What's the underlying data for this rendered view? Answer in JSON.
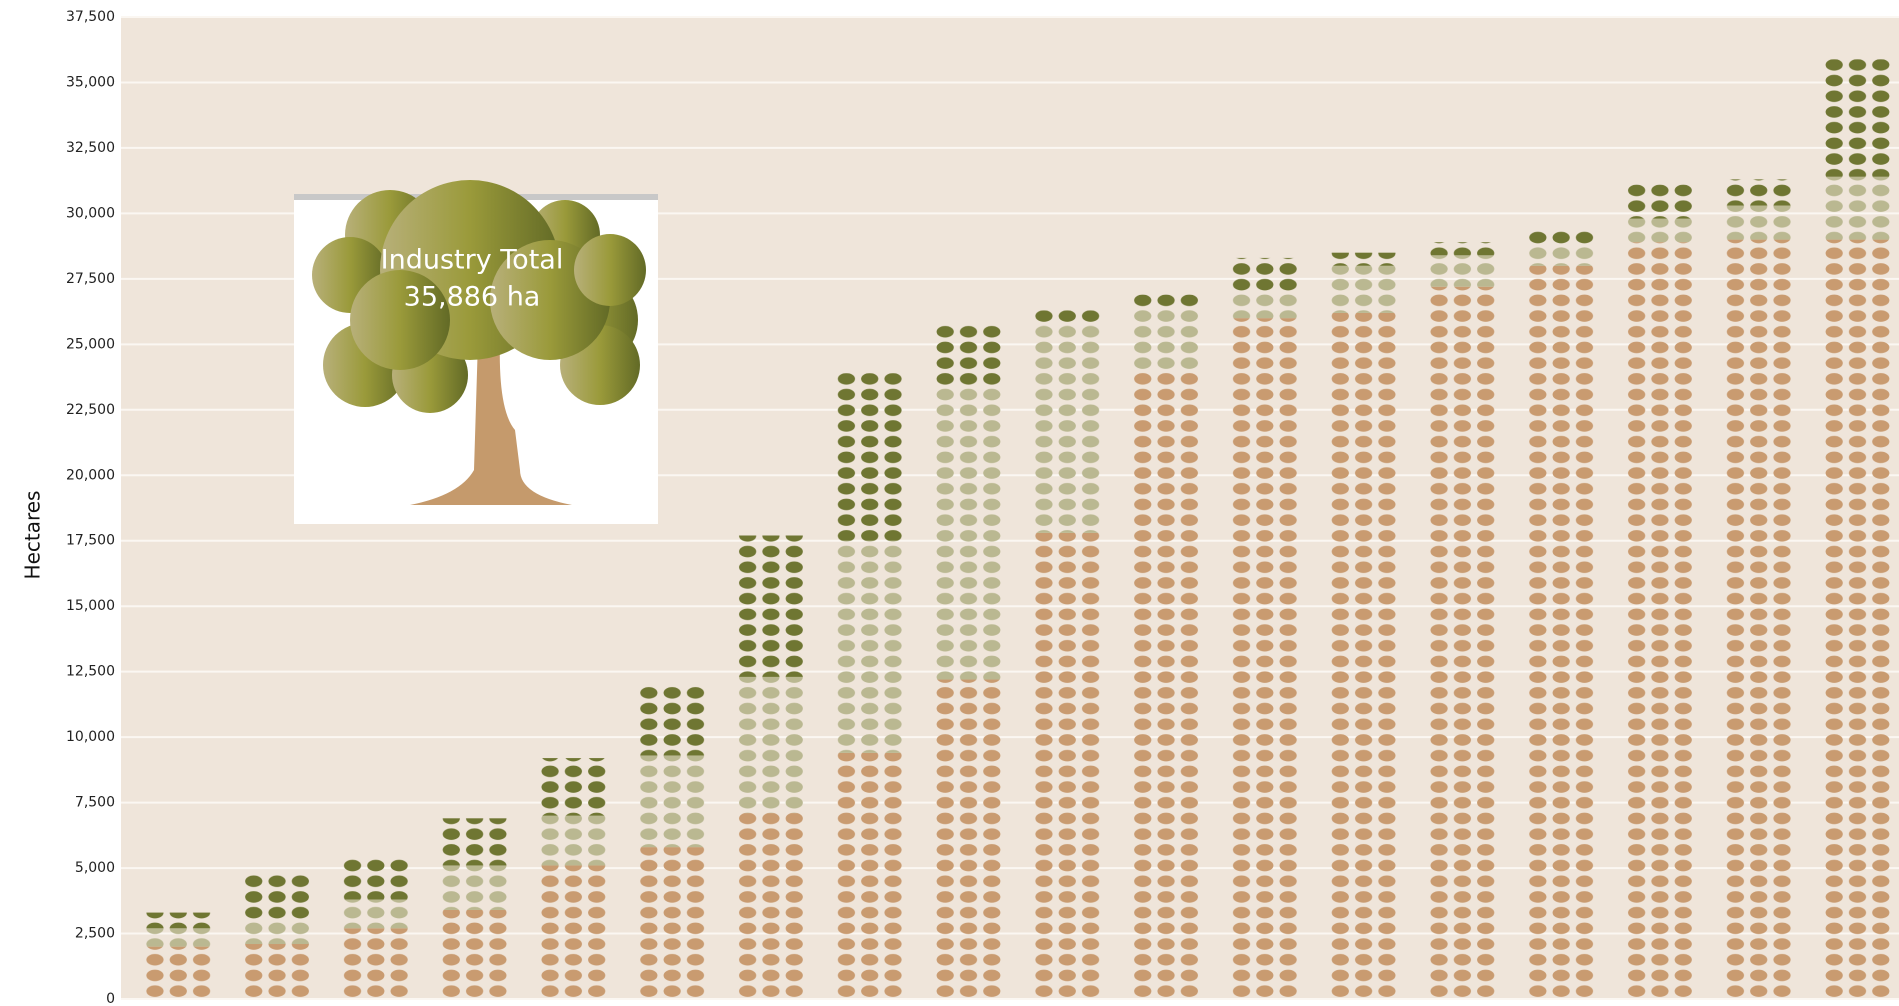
{
  "chart_data": {
    "type": "stacked-pictograph",
    "y_label": "Hectares",
    "annotations": [
      "Industry Total",
      "35,886 ha"
    ],
    "categories": [
      null,
      null,
      null,
      null,
      null,
      null,
      null,
      null,
      null,
      null,
      null,
      null,
      null,
      null,
      null,
      null,
      null,
      null
    ],
    "series": [
      {
        "color": "#c99b70",
        "values": [
          2000,
          2100,
          2700,
          3400,
          5100,
          5800,
          7100,
          9400,
          12200,
          17800,
          24000,
          26000,
          26200,
          27200,
          28000,
          28900,
          29000,
          29000
        ]
      },
      {
        "color": "#bab891",
        "values": [
          700,
          900,
          1100,
          1700,
          1900,
          3500,
          5200,
          8100,
          11200,
          7900,
          2400,
          1000,
          1800,
          1200,
          700,
          900,
          1300,
          2400
        ]
      },
      {
        "color": "#6f7632",
        "values": [
          600,
          1800,
          1600,
          1800,
          2200,
          2700,
          5400,
          6400,
          2400,
          600,
          500,
          1300,
          500,
          500,
          700,
          1300,
          1000,
          4486
        ]
      }
    ],
    "ylim": [
      0,
      37500
    ],
    "yticks": [
      0,
      {
        "value": 2500,
        "label": "2,500"
      },
      {
        "value": 5000,
        "label": "5,000"
      },
      {
        "value": 7500,
        "label": "7,500"
      },
      {
        "value": 10000,
        "label": "10,000"
      },
      {
        "value": 12500,
        "label": "12,500"
      },
      {
        "value": 15000,
        "label": "15,000"
      },
      {
        "value": 17500,
        "label": "17,500"
      },
      {
        "value": 20000,
        "label": "20,000"
      },
      {
        "value": 22500,
        "label": "22,500"
      },
      {
        "value": 25000,
        "label": "25,000"
      },
      {
        "value": 27500,
        "label": "27,500"
      },
      {
        "value": 30000,
        "label": "30,000"
      },
      {
        "value": 32500,
        "label": "32,500"
      },
      {
        "value": 35000,
        "label": "35,000"
      },
      {
        "value": 37500,
        "label": "37,500"
      }
    ],
    "background": "#efe5da",
    "grid": true
  }
}
